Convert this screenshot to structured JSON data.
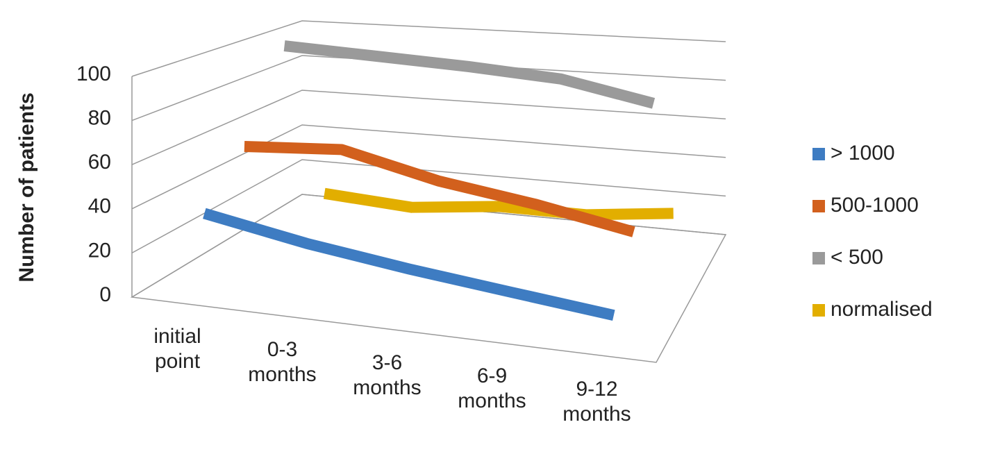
{
  "chart_data": {
    "type": "line3d",
    "y_axis_label": "Number of patients",
    "categories": [
      "initial point",
      "0-3 months",
      "3-6 months",
      "6-9 months",
      "9-12 months"
    ],
    "ylim": [
      0,
      100
    ],
    "yticks": [
      0,
      20,
      40,
      60,
      80,
      100
    ],
    "grid": true,
    "legend": "right",
    "series": [
      {
        "name": "> 1000",
        "color": "#3e7cc2",
        "values": [
          36,
          28,
          22,
          17,
          12
        ]
      },
      {
        "name": "500-1000",
        "color": "#d2601d",
        "values": [
          58,
          62,
          52,
          46,
          38
        ]
      },
      {
        "name": "< 500",
        "color": "#9a9a9a",
        "values": [
          100,
          99,
          98,
          96,
          88
        ]
      },
      {
        "name": "normalised",
        "color": "#e2ae00",
        "values": [
          10,
          7,
          12,
          12,
          17
        ]
      }
    ]
  }
}
